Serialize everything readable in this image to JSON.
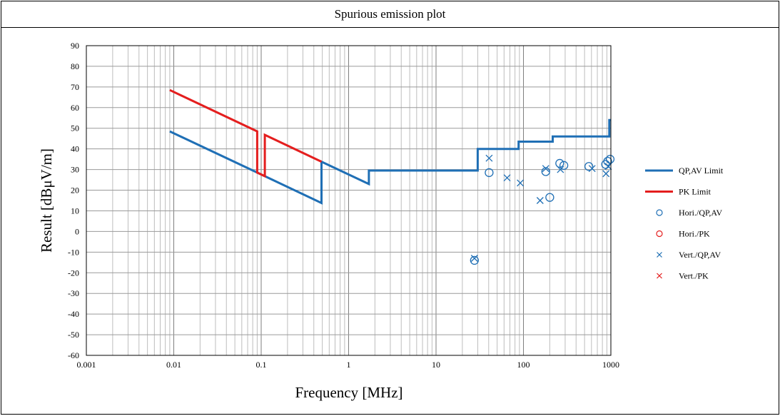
{
  "page": {
    "title": "Spurious emission plot"
  },
  "chart_data": {
    "type": "scatter",
    "xscale": "log",
    "xlim": [
      0.001,
      1000
    ],
    "ylim": [
      -60,
      90
    ],
    "xlabel": "Frequency [MHz]",
    "ylabel": "Result [dBμV/m]",
    "x_tick_labels": [
      "0.001",
      "0.01",
      "0.1",
      "1",
      "10",
      "100",
      "1000"
    ],
    "y_tick_labels": [
      "90",
      "80",
      "70",
      "60",
      "50",
      "40",
      "30",
      "20",
      "10",
      "0",
      "-10",
      "-20",
      "-30",
      "-40",
      "-50",
      "-60"
    ],
    "grid": true,
    "legend_position": "right",
    "colors": {
      "qp_av": "#1f6fb5",
      "pk": "#e41e1e"
    },
    "series": [
      {
        "name": "QP,AV Limit",
        "kind": "line",
        "color": "#1f6fb5",
        "x": [
          0.009,
          0.11,
          0.49,
          0.49,
          1.705,
          1.705,
          30,
          30,
          88,
          88,
          216,
          216,
          960,
          960,
          1000
        ],
        "y": [
          48.5,
          26.8,
          13.8,
          33.8,
          23.0,
          29.5,
          29.5,
          40.0,
          40.0,
          43.5,
          43.5,
          46.0,
          46.0,
          54.0,
          54.0
        ]
      },
      {
        "name": "PK Limit",
        "kind": "line",
        "color": "#e41e1e",
        "x": [
          0.009,
          0.09,
          0.09,
          0.11,
          0.11,
          0.49
        ],
        "y": [
          68.5,
          48.5,
          28.5,
          26.8,
          46.8,
          33.8
        ]
      },
      {
        "name": "Hori./QP,AV",
        "kind": "circle",
        "color": "#1f6fb5",
        "x": [
          27.5,
          40.5,
          180,
          200,
          260,
          290,
          560,
          870,
          920,
          980
        ],
        "y": [
          -14,
          28.5,
          29,
          16.5,
          33,
          32,
          31.5,
          32.5,
          34,
          35
        ]
      },
      {
        "name": "Hori./PK",
        "kind": "circle",
        "color": "#e41e1e",
        "x": [],
        "y": []
      },
      {
        "name": "Vert./QP,AV",
        "kind": "cross",
        "color": "#1f6fb5",
        "x": [
          27.5,
          40.5,
          65,
          92,
          155,
          180,
          265,
          610,
          880,
          935
        ],
        "y": [
          -13,
          35.5,
          26,
          23.5,
          15,
          30.5,
          30,
          30.5,
          28,
          31.5
        ]
      },
      {
        "name": "Vert./PK",
        "kind": "cross",
        "color": "#e41e1e",
        "x": [],
        "y": []
      }
    ]
  }
}
